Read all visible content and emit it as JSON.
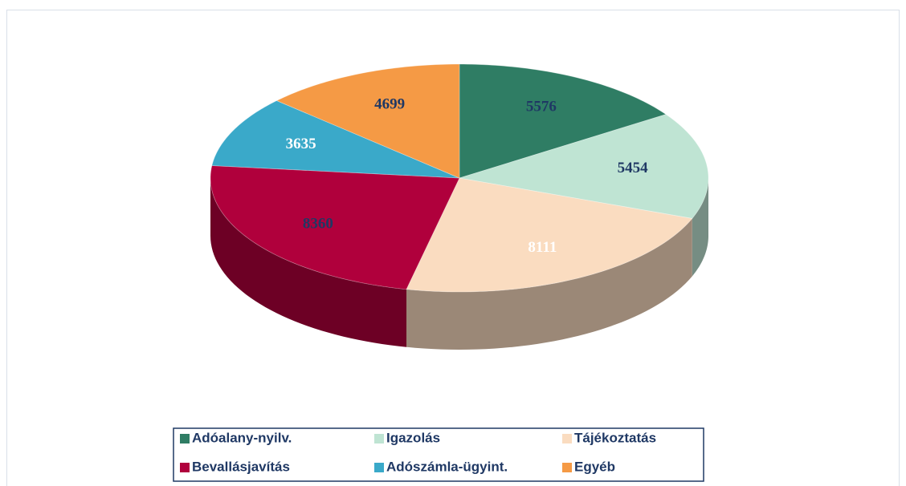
{
  "chart_data": {
    "type": "pie3d",
    "categories": [
      "Adóalany-nyilv.",
      "Igazolás",
      "Tájékoztatás",
      "Bevallásjavítás",
      "Adószámla-ügyint.",
      "Egyéb"
    ],
    "values": [
      5576,
      5454,
      8111,
      8360,
      3635,
      4699
    ],
    "colors": [
      "#2f7d64",
      "#bfe4d3",
      "#fadcc0",
      "#b0003c",
      "#3aa9c9",
      "#f59a45"
    ],
    "label_colors": [
      "#1f3864",
      "#1f3864",
      "#ffffff",
      "#1f3864",
      "#ffffff",
      "#1f3864"
    ],
    "legend": "bottom"
  }
}
